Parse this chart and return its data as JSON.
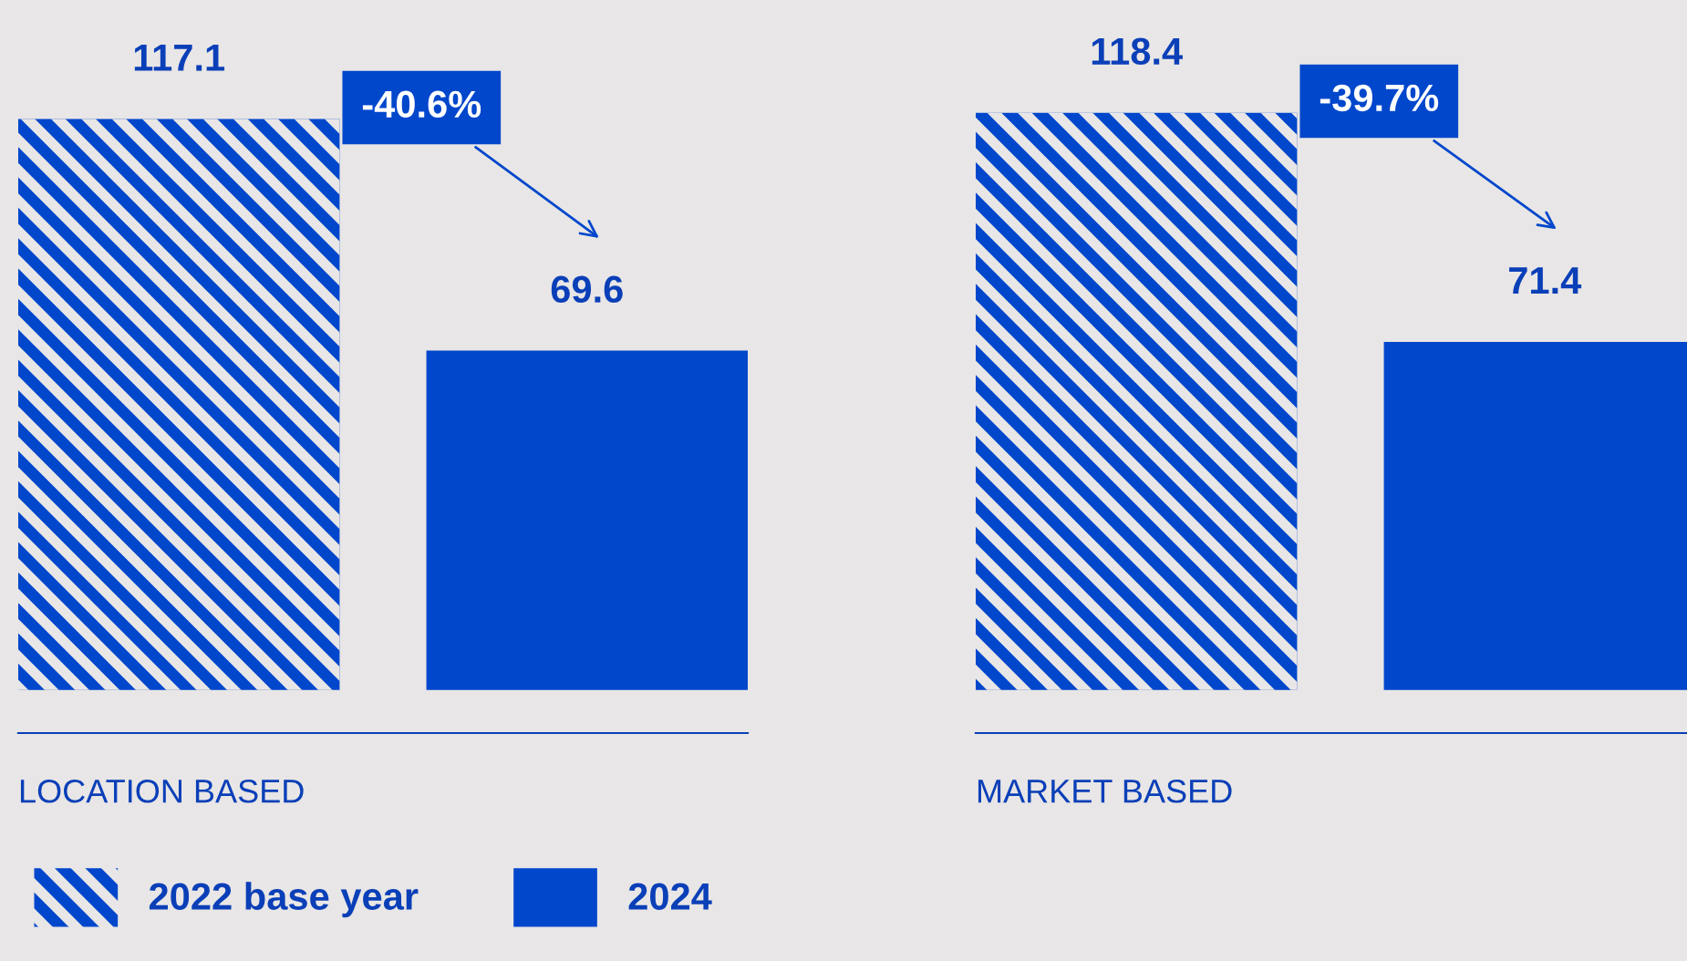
{
  "chart_data": [
    {
      "type": "bar",
      "xlabel": "LOCATION BASED",
      "categories": [
        null
      ],
      "data_labels": true,
      "legend": "bottom",
      "annotations": [
        "-40.6%"
      ],
      "series": [
        {
          "name": "2022 base year",
          "color": "#0047cc",
          "values": [
            117.1
          ]
        },
        {
          "name": "2024",
          "color": "#0047cc",
          "values": [
            69.6
          ]
        }
      ]
    },
    {
      "type": "bar",
      "xlabel": "MARKET BASED",
      "categories": [
        null
      ],
      "data_labels": true,
      "annotations": [
        "-39.7%"
      ],
      "series": [
        {
          "color": "#0047cc",
          "values": [
            118.4
          ]
        },
        {
          "color": "#0047cc",
          "values": [
            71.4
          ]
        }
      ]
    }
  ]
}
